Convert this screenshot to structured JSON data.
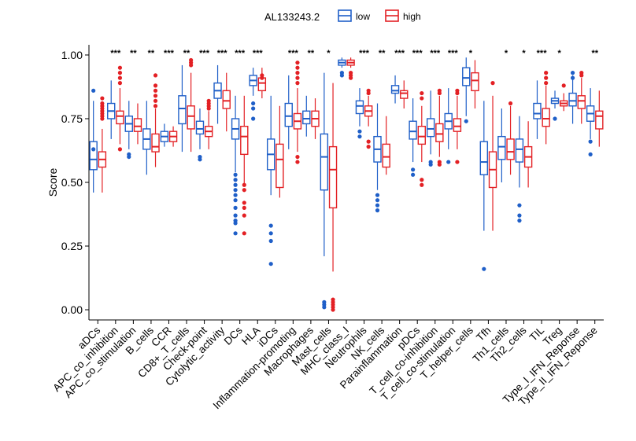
{
  "chart_data": {
    "type": "boxplot",
    "title": "",
    "xlabel": "",
    "ylabel": "Score",
    "ylim": [
      -0.04,
      1.04
    ],
    "yticks": [
      0.0,
      0.25,
      0.5,
      0.75,
      1.0
    ],
    "ytick_labels": [
      "0.00",
      "0.25",
      "0.50",
      "0.75",
      "1.00"
    ],
    "legend": {
      "title": "AL133243.2",
      "placement": "top",
      "entries": [
        {
          "name": "low",
          "color": "#1f5fc8"
        },
        {
          "name": "high",
          "color": "#e32024"
        }
      ]
    },
    "categories": [
      "aDCs",
      "APC_co_inhibition",
      "APC_co_stimulation",
      "B_cells",
      "CCR",
      "CD8+_T_cells",
      "Check-point",
      "Cytolytic_activity",
      "DCs",
      "HLA",
      "iDCs",
      "Inflammation-promoting",
      "Macrophages",
      "Mast_cells",
      "MHC_class_I",
      "Neutrophils",
      "NK_cells",
      "Parainflammation",
      "pDCs",
      "T_cell_co-inhibition",
      "T_cell_co-stimulation",
      "T_helper_cells",
      "Tfh",
      "Th1_cells",
      "Th2_cells",
      "TIL",
      "Treg",
      "Type_I_IFN_Reponse",
      "Type_II_IFN_Reponse"
    ],
    "significance": [
      "",
      "***",
      "**",
      "**",
      "***",
      "**",
      "***",
      "***",
      "***",
      "***",
      "",
      "***",
      "**",
      "*",
      "",
      "***",
      "**",
      "***",
      "***",
      "***",
      "***",
      "*",
      "",
      "*",
      "*",
      "***",
      "*",
      "",
      "**"
    ],
    "series": [
      {
        "name": "low",
        "color": "#1f5fc8",
        "boxes": [
          [
            0.46,
            0.55,
            0.59,
            0.66,
            0.82
          ],
          [
            0.67,
            0.75,
            0.78,
            0.81,
            0.9
          ],
          [
            0.63,
            0.7,
            0.73,
            0.76,
            0.82
          ],
          [
            0.53,
            0.63,
            0.67,
            0.71,
            0.82
          ],
          [
            0.64,
            0.66,
            0.68,
            0.7,
            0.73
          ],
          [
            0.62,
            0.73,
            0.79,
            0.84,
            0.96
          ],
          [
            0.63,
            0.69,
            0.71,
            0.74,
            0.79
          ],
          [
            0.73,
            0.83,
            0.86,
            0.89,
            0.96
          ],
          [
            0.54,
            0.67,
            0.71,
            0.75,
            0.84
          ],
          [
            0.84,
            0.88,
            0.9,
            0.92,
            0.95
          ],
          [
            0.45,
            0.55,
            0.61,
            0.67,
            0.84
          ],
          [
            0.63,
            0.72,
            0.76,
            0.81,
            0.92
          ],
          [
            0.68,
            0.73,
            0.75,
            0.78,
            0.84
          ],
          [
            0.21,
            0.47,
            0.6,
            0.69,
            0.93
          ],
          [
            0.95,
            0.96,
            0.97,
            0.98,
            0.99
          ],
          [
            0.72,
            0.77,
            0.8,
            0.82,
            0.87
          ],
          [
            0.47,
            0.58,
            0.63,
            0.68,
            0.81
          ],
          [
            0.81,
            0.85,
            0.86,
            0.88,
            0.92
          ],
          [
            0.58,
            0.67,
            0.7,
            0.74,
            0.83
          ],
          [
            0.61,
            0.68,
            0.71,
            0.75,
            0.86
          ],
          [
            0.63,
            0.71,
            0.74,
            0.77,
            0.87
          ],
          [
            0.76,
            0.88,
            0.91,
            0.95,
            0.99
          ],
          [
            0.31,
            0.53,
            0.58,
            0.66,
            0.82
          ],
          [
            0.5,
            0.59,
            0.64,
            0.68,
            0.79
          ],
          [
            0.48,
            0.58,
            0.63,
            0.67,
            0.76
          ],
          [
            0.67,
            0.75,
            0.77,
            0.81,
            0.9
          ],
          [
            0.79,
            0.81,
            0.82,
            0.83,
            0.86
          ],
          [
            0.73,
            0.8,
            0.82,
            0.85,
            0.92
          ],
          [
            0.67,
            0.74,
            0.77,
            0.8,
            0.87
          ]
        ],
        "outliers": [
          [
            0.86,
            0.63
          ],
          [],
          [
            0.6,
            0.61
          ],
          [],
          [],
          [],
          [
            0.59,
            0.6
          ],
          [],
          [
            0.53,
            0.51,
            0.49,
            0.47,
            0.45,
            0.43,
            0.4,
            0.37,
            0.35,
            0.34,
            0.3
          ],
          [
            0.79,
            0.81,
            0.75
          ],
          [
            0.33,
            0.3,
            0.27,
            0.18
          ],
          [],
          [],
          [
            0.03,
            0.02,
            0.01
          ],
          [
            0.92,
            0.93
          ],
          [
            0.7,
            0.68
          ],
          [
            0.45,
            0.43,
            0.41,
            0.39
          ],
          [],
          [
            0.55,
            0.53
          ],
          [
            0.58,
            0.57
          ],
          [
            0.58
          ],
          [
            0.74
          ],
          [
            0.16
          ],
          [],
          [
            0.41,
            0.37,
            0.35
          ],
          [],
          [
            0.75
          ],
          [
            0.93,
            0.91
          ],
          [
            0.66,
            0.61
          ]
        ]
      },
      {
        "name": "high",
        "color": "#e32024",
        "boxes": [
          [
            0.46,
            0.56,
            0.59,
            0.62,
            0.71
          ],
          [
            0.65,
            0.73,
            0.76,
            0.78,
            0.87
          ],
          [
            0.65,
            0.7,
            0.72,
            0.75,
            0.81
          ],
          [
            0.56,
            0.62,
            0.64,
            0.69,
            0.79
          ],
          [
            0.64,
            0.66,
            0.68,
            0.7,
            0.72
          ],
          [
            0.62,
            0.71,
            0.76,
            0.8,
            0.93
          ],
          [
            0.63,
            0.68,
            0.7,
            0.72,
            0.78
          ],
          [
            0.7,
            0.79,
            0.82,
            0.86,
            0.93
          ],
          [
            0.49,
            0.61,
            0.68,
            0.72,
            0.84
          ],
          [
            0.83,
            0.86,
            0.89,
            0.91,
            0.95
          ],
          [
            0.44,
            0.48,
            0.59,
            0.65,
            0.8
          ],
          [
            0.62,
            0.71,
            0.74,
            0.77,
            0.87
          ],
          [
            0.67,
            0.72,
            0.75,
            0.78,
            0.83
          ],
          [
            0.15,
            0.4,
            0.55,
            0.64,
            0.89
          ],
          [
            0.95,
            0.96,
            0.97,
            0.98,
            0.99
          ],
          [
            0.72,
            0.76,
            0.78,
            0.8,
            0.84
          ],
          [
            0.53,
            0.56,
            0.6,
            0.65,
            0.76
          ],
          [
            0.79,
            0.83,
            0.85,
            0.86,
            0.9
          ],
          [
            0.58,
            0.65,
            0.68,
            0.72,
            0.8
          ],
          [
            0.6,
            0.66,
            0.69,
            0.73,
            0.84
          ],
          [
            0.63,
            0.7,
            0.72,
            0.75,
            0.84
          ],
          [
            0.79,
            0.86,
            0.9,
            0.93,
            0.98
          ],
          [
            0.31,
            0.48,
            0.55,
            0.62,
            0.84
          ],
          [
            0.53,
            0.59,
            0.62,
            0.67,
            0.8
          ],
          [
            0.48,
            0.56,
            0.6,
            0.64,
            0.74
          ],
          [
            0.65,
            0.72,
            0.75,
            0.79,
            0.88
          ],
          [
            0.78,
            0.8,
            0.81,
            0.82,
            0.85
          ],
          [
            0.73,
            0.79,
            0.82,
            0.84,
            0.91
          ],
          [
            0.64,
            0.71,
            0.76,
            0.78,
            0.86
          ]
        ],
        "outliers": [
          [
            0.83,
            0.81,
            0.8,
            0.79,
            0.78,
            0.77,
            0.76,
            0.75
          ],
          [
            0.95,
            0.93,
            0.91,
            0.89,
            0.63
          ],
          [],
          [
            0.92,
            0.88,
            0.86,
            0.84,
            0.82,
            0.8
          ],
          [],
          [
            0.98,
            0.97,
            0.96
          ],
          [
            0.82,
            0.81,
            0.8,
            0.79
          ],
          [],
          [
            0.49,
            0.47,
            0.42,
            0.4,
            0.37,
            0.3
          ],
          [
            0.92,
            0.91
          ],
          [],
          [
            0.89,
            0.91,
            0.93,
            0.95,
            0.97,
            0.6,
            0.58
          ],
          [],
          [
            0.04,
            0.03,
            0.02,
            0.01,
            0.0
          ],
          [
            0.93,
            0.92,
            0.91
          ],
          [
            0.85,
            0.86,
            0.66,
            0.64
          ],
          [],
          [],
          [
            0.83,
            0.85,
            0.49,
            0.51
          ],
          [
            0.85,
            0.86,
            0.57,
            0.58
          ],
          [
            0.85,
            0.86,
            0.58
          ],
          [],
          [
            0.89
          ],
          [
            0.81
          ],
          [],
          [
            0.89,
            0.91,
            0.93
          ],
          [
            0.88
          ],
          [
            0.93,
            0.92
          ],
          []
        ]
      }
    ]
  }
}
